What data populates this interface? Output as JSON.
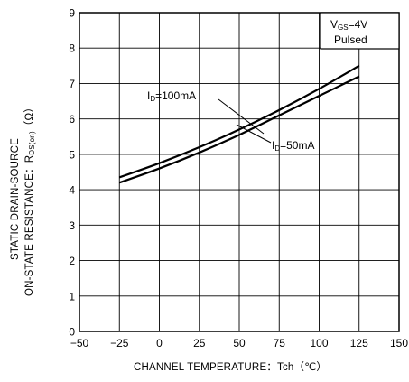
{
  "chart_data": {
    "type": "line",
    "xlabel": "CHANNEL TEMPERATURE：Tch（℃）",
    "ylabel_line1": "STATIC DRAIN-SOURCE",
    "ylabel_line2": "ON-STATE RESISTANCE：R",
    "ylabel_sub": "DS(on)",
    "ylabel_unit": "（Ω）",
    "xlim": [
      -50,
      150
    ],
    "ylim": [
      0,
      9
    ],
    "xticks": [
      "−50",
      "−25",
      "0",
      "25",
      "50",
      "75",
      "100",
      "125",
      "150"
    ],
    "yticks": [
      "0",
      "1",
      "2",
      "3",
      "4",
      "5",
      "6",
      "7",
      "8",
      "9"
    ],
    "grid": true,
    "legend_box": {
      "line1_main": "V",
      "line1_sub": "GS",
      "line1_rest": "=4V",
      "line2": "Pulsed"
    },
    "series": [
      {
        "name": "ID=100mA",
        "label_main": "I",
        "label_sub": "D",
        "label_rest": "=100mA",
        "x": [
          -25,
          0,
          25,
          50,
          75,
          100,
          125
        ],
        "y": [
          4.35,
          4.75,
          5.2,
          5.7,
          6.25,
          6.85,
          7.5
        ]
      },
      {
        "name": "ID=50mA",
        "label_main": "I",
        "label_sub": "D",
        "label_rest": "=50mA",
        "x": [
          -25,
          0,
          25,
          50,
          75,
          100,
          125
        ],
        "y": [
          4.2,
          4.6,
          5.05,
          5.55,
          6.1,
          6.65,
          7.2
        ]
      }
    ]
  }
}
